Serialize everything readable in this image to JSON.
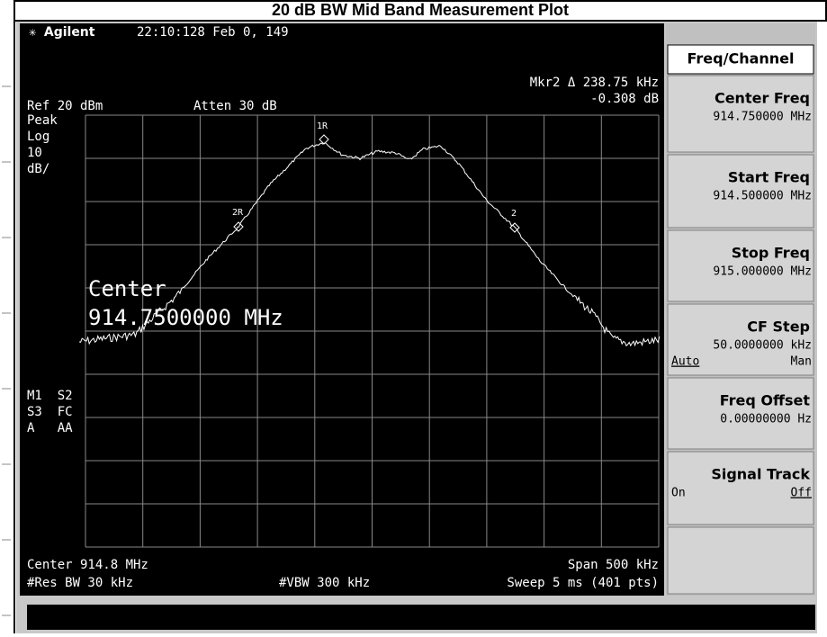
{
  "title": "20 dB BW Mid Band Measurement Plot",
  "display": {
    "brand": "Agilent",
    "timestamp": "22:10:128  Feb 0, 149",
    "marker_readout": "Mkr2 Δ  238.75 kHz",
    "marker_delta": "-0.308 dB",
    "ref_level": "Ref 20 dBm",
    "attenuation": "Atten 30 dB",
    "left_labels": [
      "Peak",
      "Log",
      "10",
      "dB/"
    ],
    "status_labels": [
      "M1  S2",
      "S3  FC",
      "A   AA"
    ],
    "overlay": [
      "Center",
      "914.7500000 MHz"
    ],
    "markers": [
      "1R",
      "2R",
      "2"
    ],
    "center": "Center 914.8 MHz",
    "span": "Span 500 kHz",
    "res_bw": "#Res BW 30 kHz",
    "vbw": "#VBW 300 kHz",
    "sweep": "Sweep 5 ms (401 pts)"
  },
  "softkeys": {
    "menu": "Freq/Channel",
    "keys": [
      {
        "label": "Center Freq",
        "value": "914.750000 MHz"
      },
      {
        "label": "Start Freq",
        "value": "914.500000 MHz"
      },
      {
        "label": "Stop Freq",
        "value": "915.000000 MHz"
      },
      {
        "label": "CF Step",
        "value": "50.0000000 kHz",
        "options": [
          "Auto",
          "Man"
        ]
      },
      {
        "label": "Freq Offset",
        "value": "0.00000000  Hz"
      },
      {
        "label": "Signal Track",
        "options": [
          "On",
          "Off"
        ]
      }
    ]
  }
}
